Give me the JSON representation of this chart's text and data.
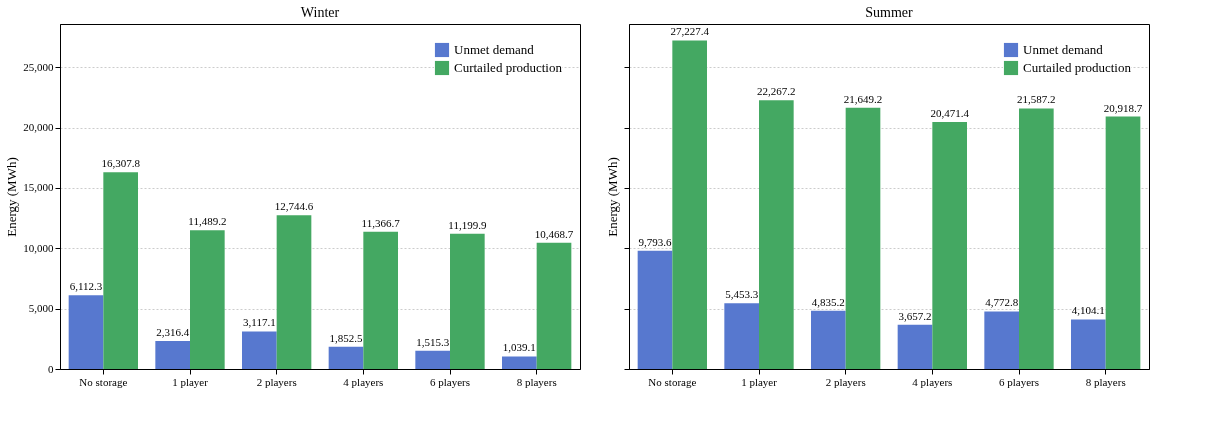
{
  "chart_data": [
    {
      "type": "bar",
      "title": "Winter",
      "ylabel": "Energy (MWh)",
      "categories": [
        "No storage",
        "1 player",
        "2 players",
        "4 players",
        "6 players",
        "8 players"
      ],
      "series": [
        {
          "name": "Unmet demand",
          "color": "#5778cf",
          "values": [
            6112.3,
            2316.4,
            3117.1,
            1852.5,
            1515.3,
            1039.1
          ],
          "value_labels": [
            "6,112.3",
            "2,316.4",
            "3,117.1",
            "1,852.5",
            "1,515.3",
            "1,039.1"
          ]
        },
        {
          "name": "Curtailed production",
          "color": "#44a862",
          "values": [
            16307.8,
            11489.2,
            12744.6,
            11366.7,
            11199.9,
            10468.7
          ],
          "value_labels": [
            "16,307.8",
            "11,489.2",
            "12,744.6",
            "11,366.7",
            "11,199.9",
            "10,468.7"
          ]
        }
      ],
      "ylim": [
        0,
        28589
      ],
      "yticks": [
        0,
        {
          "value": 5000,
          "label": "5,000"
        },
        {
          "value": 10000,
          "label": "10,000"
        },
        {
          "value": 15000,
          "label": "15,000"
        },
        {
          "value": 20000,
          "label": "20,000"
        },
        {
          "value": 25000,
          "label": "25,000"
        }
      ],
      "grid": "y",
      "legend": "top right"
    },
    {
      "type": "bar",
      "title": "Summer",
      "ylabel": "Energy (MWh)",
      "categories": [
        "No storage",
        "1 player",
        "2 players",
        "4 players",
        "6 players",
        "8 players"
      ],
      "series": [
        {
          "name": "Unmet demand",
          "color": "#5778cf",
          "values": [
            9793.6,
            5453.3,
            4835.2,
            3657.2,
            4772.8,
            4104.1
          ],
          "value_labels": [
            "9,793.6",
            "5,453.3",
            "4,835.2",
            "3,657.2",
            "4,772.8",
            "4,104.1"
          ]
        },
        {
          "name": "Curtailed production",
          "color": "#44a862",
          "values": [
            27227.4,
            22267.2,
            21649.2,
            20471.4,
            21587.2,
            20918.7
          ],
          "value_labels": [
            "27,227.4",
            "22,267.2",
            "21,649.2",
            "20,471.4",
            "21,587.2",
            "20,918.7"
          ]
        }
      ],
      "ylim": [
        0,
        28589
      ],
      "yticks": [
        0,
        5000,
        10000,
        15000,
        20000,
        25000
      ],
      "grid": "y",
      "legend": "top right",
      "tick_labels": "x"
    }
  ]
}
